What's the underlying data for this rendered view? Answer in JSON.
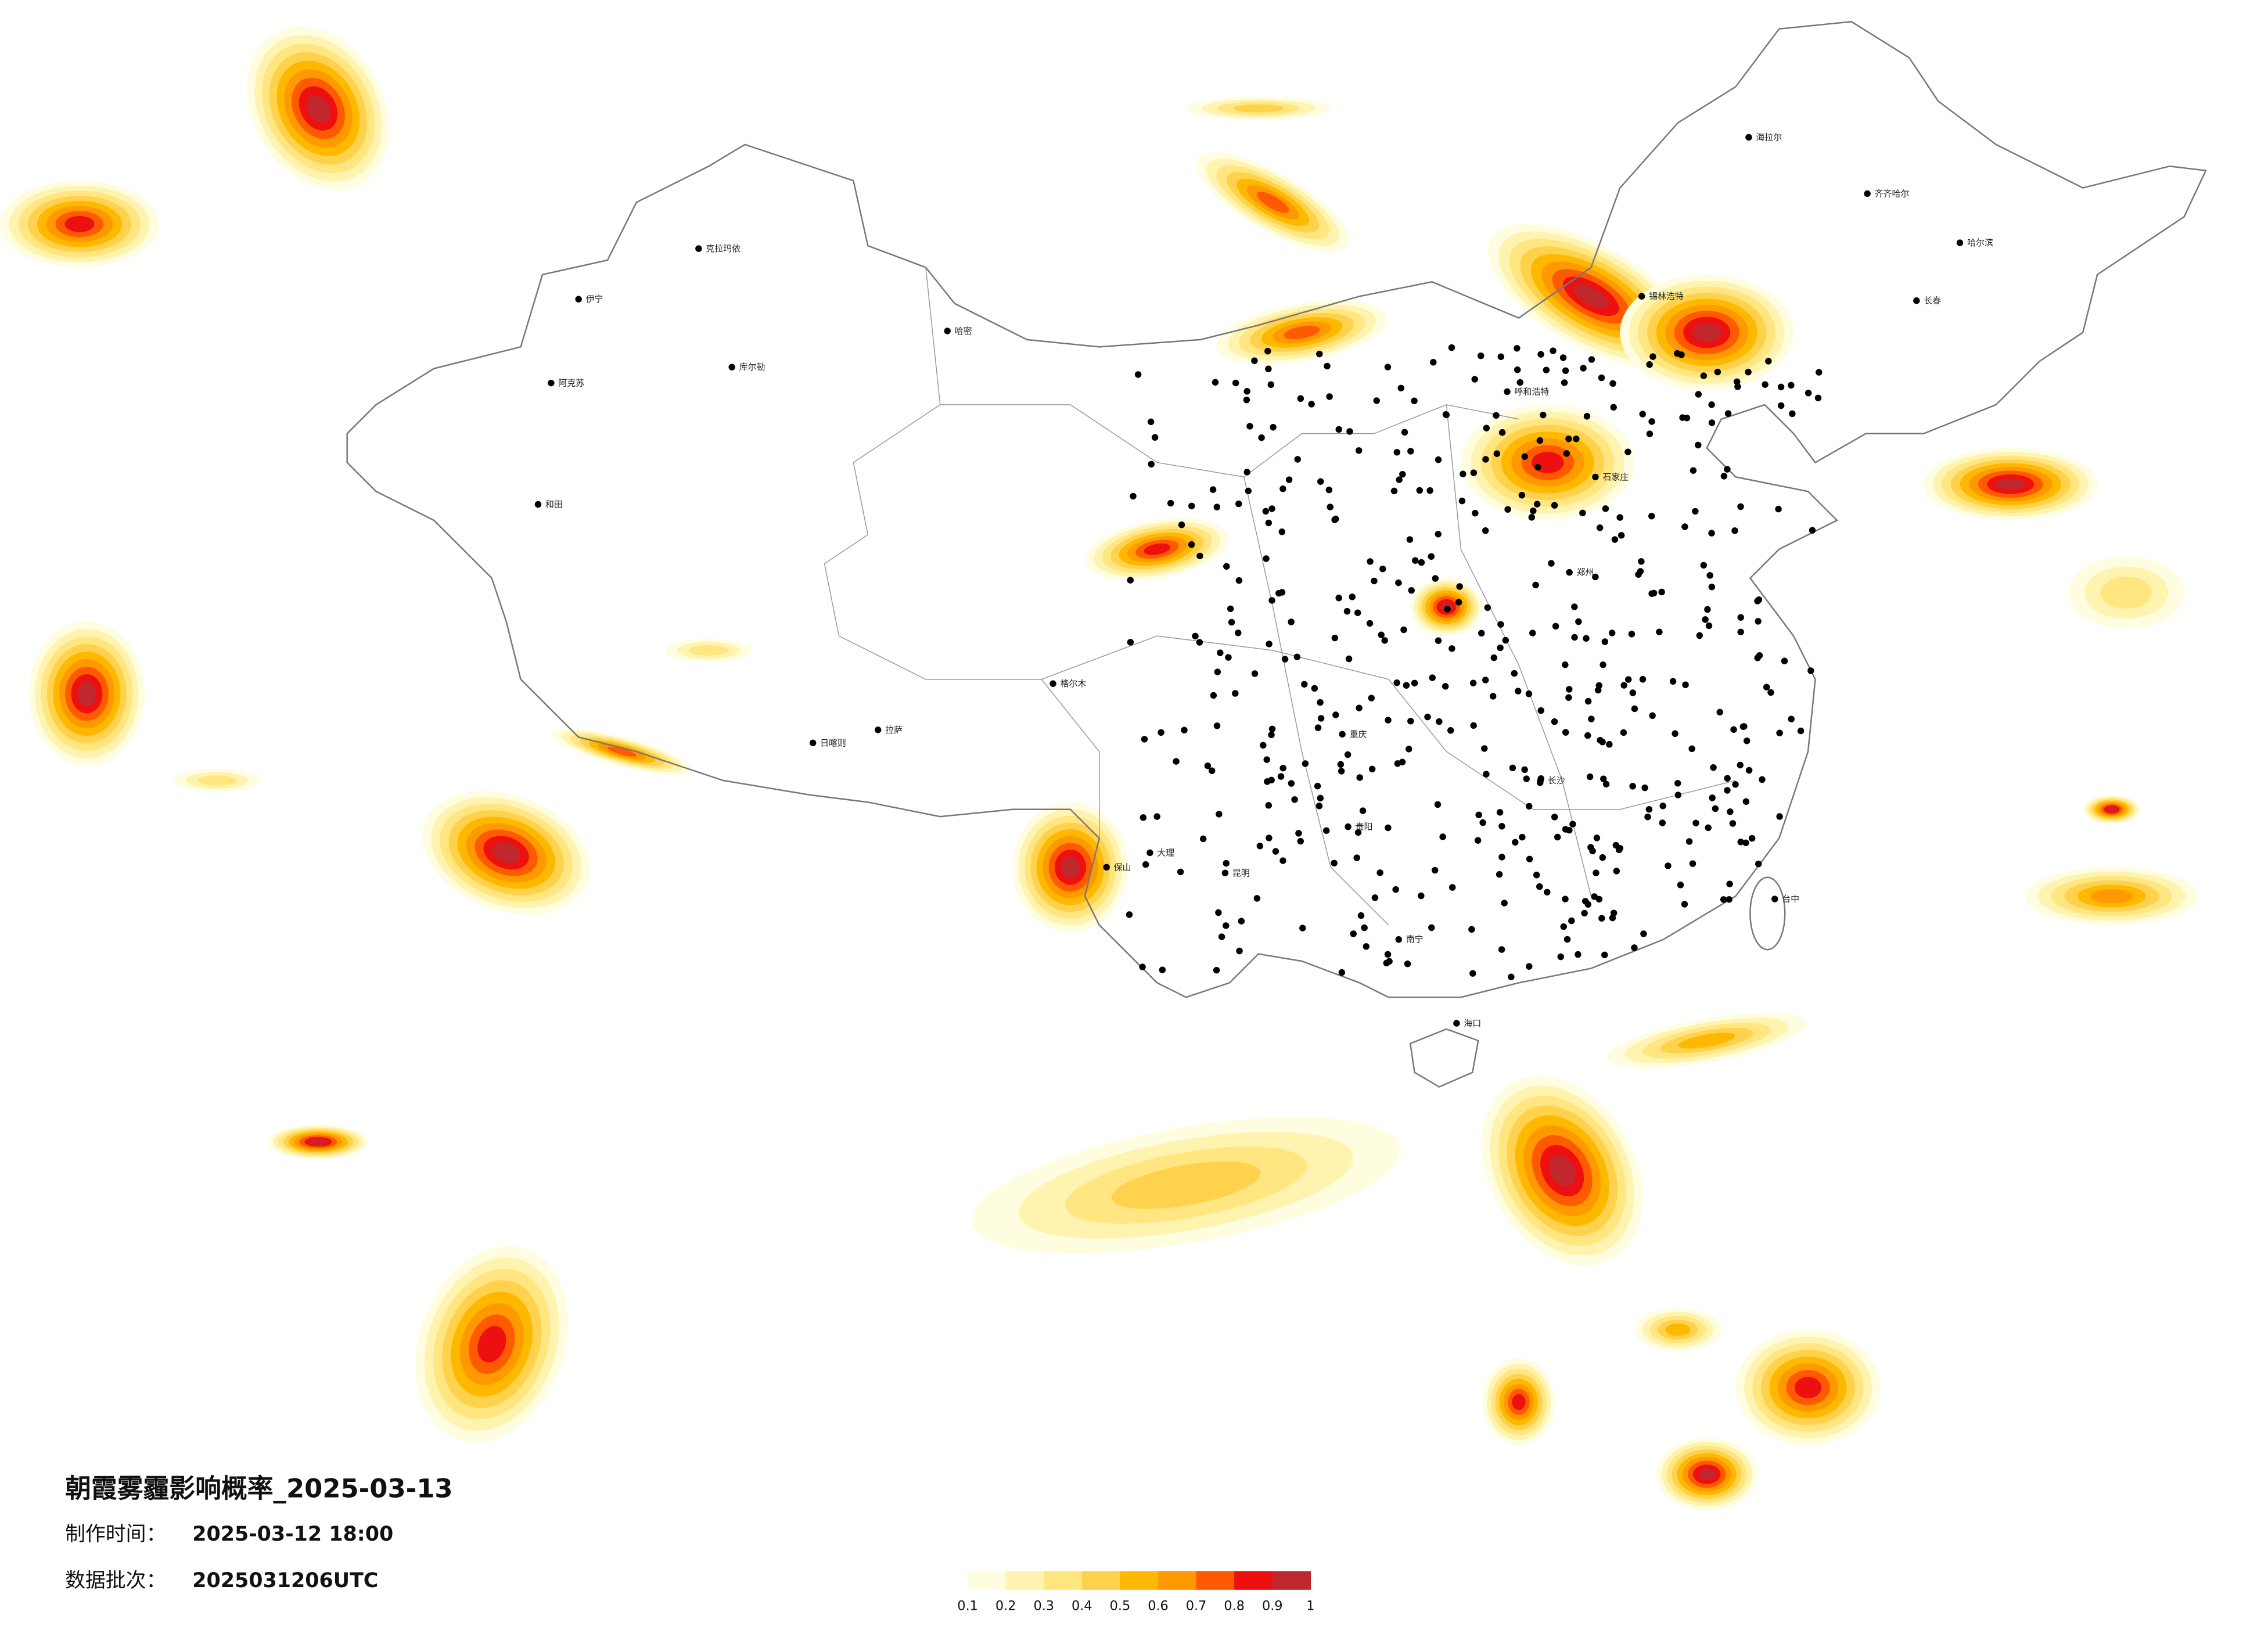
{
  "title": "朝霞雾霾影响概率_2025-03-13",
  "made_label": "制作时间：",
  "made_time": "2025-03-12 18:00",
  "batch_label": "数据批次：",
  "batch": "2025031206UTC",
  "legend": {
    "colors": [
      "#fffde0",
      "#fff3b0",
      "#ffe680",
      "#ffd24d",
      "#ffb800",
      "#ff9900",
      "#ff5a00",
      "#ee1010",
      "#c0282e"
    ],
    "range": [
      0.1,
      1
    ],
    "ticks": [
      0.1,
      0.2,
      0.3,
      0.4,
      0.5,
      0.6,
      0.7,
      0.8,
      0.9,
      1
    ]
  },
  "cities": [
    "克拉玛依",
    "伊宁",
    "阿克苏",
    "和田",
    "库尔勒",
    "哈密",
    "格尔木",
    "拉萨",
    "日喀则",
    "海拉尔",
    "齐齐哈尔",
    "哈尔滨",
    "长春",
    "锡林浩特",
    "呼和浩特",
    "石家庄",
    "郑州",
    "长沙",
    "南宁",
    "海口",
    "台中",
    "昆明",
    "重庆",
    "贵阳",
    "大理",
    "保山"
  ]
}
